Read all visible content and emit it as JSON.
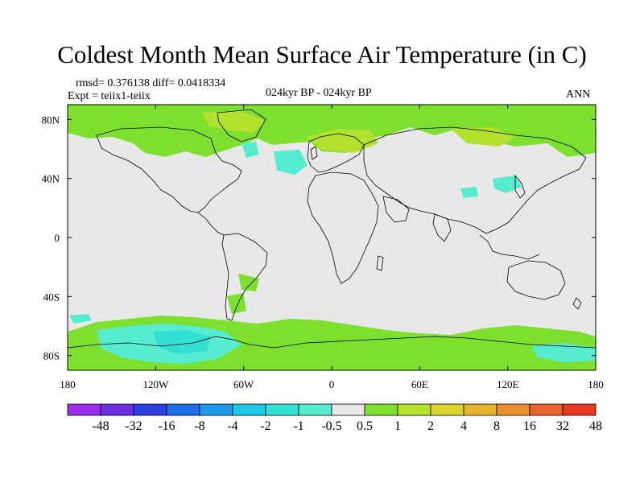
{
  "title": "Coldest Month Mean Surface Air Temperature (in C)",
  "stats_line": "rmsd= 0.376138 diff= 0.0418334",
  "expt_line": "Expt = teiix1-teiix",
  "center_label": "024kyr BP - 024kyr BP",
  "right_label": "ANN",
  "lon_ticks": [
    "180",
    "120W",
    "60W",
    "0",
    "60E",
    "120E",
    "180"
  ],
  "lat_ticks": [
    "80N",
    "40N",
    "0",
    "40S",
    "80S"
  ],
  "colorbar": {
    "labels": [
      "-48",
      "-32",
      "-16",
      "-8",
      "-4",
      "-2",
      "-1",
      "-0.5",
      "0.5",
      "1",
      "2",
      "4",
      "8",
      "16",
      "32",
      "48"
    ],
    "colors": [
      "#9b2ee8",
      "#6a2ee0",
      "#2e3fe0",
      "#1e6ee8",
      "#1e9be8",
      "#1ec8e8",
      "#33e0d6",
      "#55ecd0",
      "#e8e8e8",
      "#7ee02e",
      "#b4e02e",
      "#dcd42e",
      "#e8b42e",
      "#e8902e",
      "#e8642e",
      "#e83a1e"
    ]
  },
  "colors": {
    "ocean_background": "#e8e8e8",
    "positive_anomaly": "#7ee02e",
    "negative_anomaly": "#55ecd0",
    "cold_anomaly": "#33e0d6",
    "warm_anomaly": "#b4e02e"
  }
}
